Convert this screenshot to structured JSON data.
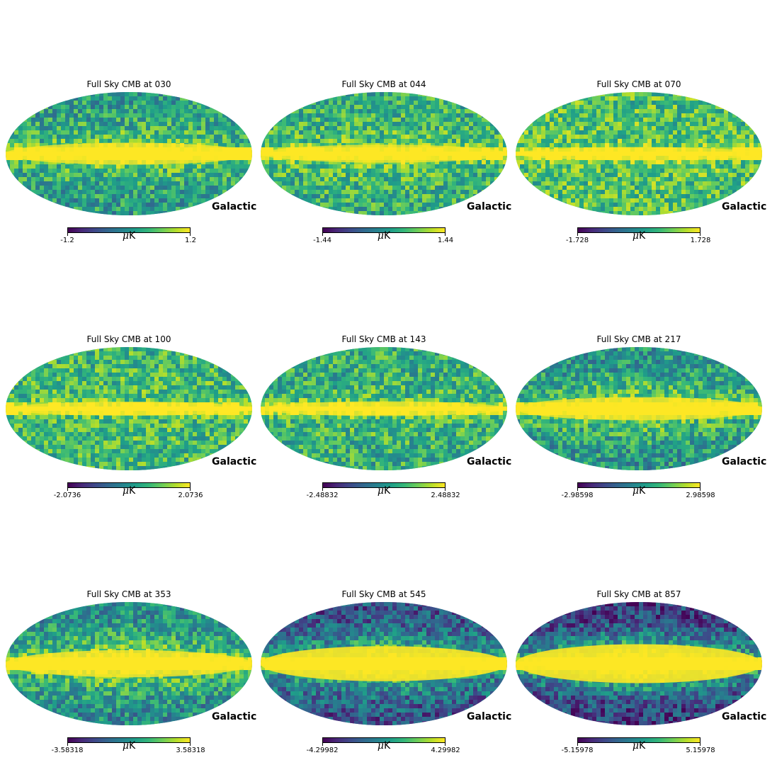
{
  "figure": {
    "coord_label": "Galactic",
    "colormap": [
      "#440154",
      "#482878",
      "#3e4989",
      "#31688e",
      "#26828e",
      "#1f9e89",
      "#35b779",
      "#6ece58",
      "#b5de2b",
      "#fde725"
    ],
    "panels": [
      {
        "title": "Full Sky CMB at 030",
        "min": "-1.2",
        "max": "1.2",
        "unit_symbol": "μ",
        "unit": "K",
        "plane_strength": 0.7,
        "halo": 0.25,
        "base": 0.55,
        "bg": "#2a8f8b"
      },
      {
        "title": "Full Sky CMB at 044",
        "min": "-1.44",
        "max": "1.44",
        "unit_symbol": "μ",
        "unit": "K",
        "plane_strength": 0.6,
        "halo": 0.15,
        "base": 0.62,
        "bg": "#33a587"
      },
      {
        "title": "Full Sky CMB at 070",
        "min": "-1.728",
        "max": "1.728",
        "unit_symbol": "μ",
        "unit": "K",
        "plane_strength": 0.45,
        "halo": 0.05,
        "base": 0.7,
        "bg": "#58bb6a"
      },
      {
        "title": "Full Sky CMB at 100",
        "min": "-2.0736",
        "max": "2.0736",
        "unit_symbol": "μ",
        "unit": "K",
        "plane_strength": 0.5,
        "halo": 0.05,
        "base": 0.66,
        "bg": "#47b272"
      },
      {
        "title": "Full Sky CMB at 143",
        "min": "-2.48832",
        "max": "2.48832",
        "unit_symbol": "μ",
        "unit": "K",
        "plane_strength": 0.5,
        "halo": 0.08,
        "base": 0.62,
        "bg": "#3eab78"
      },
      {
        "title": "Full Sky CMB at 217",
        "min": "-2.98598",
        "max": "2.98598",
        "unit_symbol": "μ",
        "unit": "K",
        "plane_strength": 0.7,
        "halo": 0.3,
        "base": 0.52,
        "bg": "#26908d"
      },
      {
        "title": "Full Sky CMB at 353",
        "min": "-3.58318",
        "max": "3.58318",
        "unit_symbol": "μ",
        "unit": "K",
        "plane_strength": 0.8,
        "halo": 0.4,
        "base": 0.48,
        "bg": "#23898e"
      },
      {
        "title": "Full Sky CMB at 545",
        "min": "-4.29982",
        "max": "4.29982",
        "unit_symbol": "μ",
        "unit": "K",
        "plane_strength": 1.0,
        "halo": 0.6,
        "base": 0.25,
        "bg": "#3b528b"
      },
      {
        "title": "Full Sky CMB at 857",
        "min": "-5.15978",
        "max": "5.15978",
        "unit_symbol": "μ",
        "unit": "K",
        "plane_strength": 1.0,
        "halo": 0.75,
        "base": 0.18,
        "bg": "#433e85"
      }
    ]
  }
}
